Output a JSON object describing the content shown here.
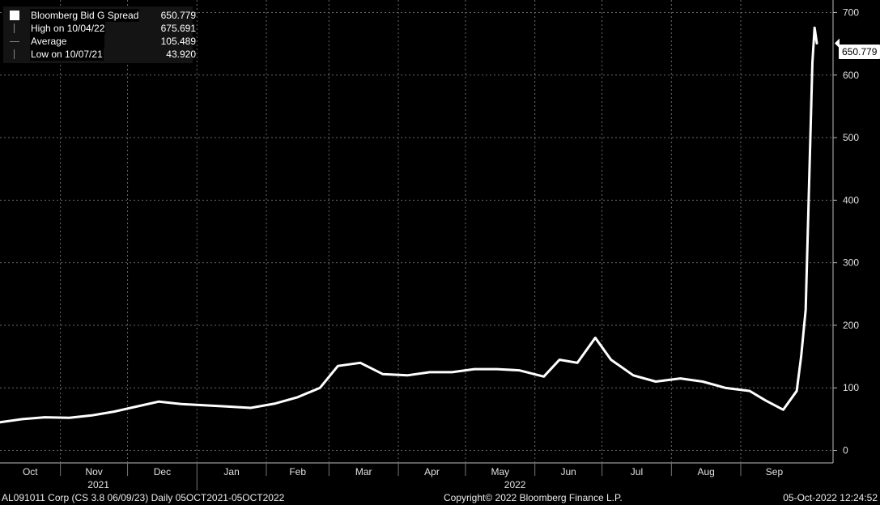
{
  "legend": {
    "series_label": "Bloomberg Bid G Spread",
    "series_value": "650.779",
    "high_label": "High on 10/04/22",
    "high_value": "675.691",
    "avg_label": "Average",
    "avg_value": "105.489",
    "low_label": "Low on 10/07/21",
    "low_value": "43.920"
  },
  "last_value_badge": "650.779",
  "footer": {
    "left": "AL091011 Corp (CS 3.8 06/09/23)  Daily 05OCT2021-05OCT2022",
    "center": "Copyright© 2022 Bloomberg Finance L.P.",
    "right": "05-Oct-2022 12:24:52"
  },
  "chart_data": {
    "type": "line",
    "title": "",
    "xlabel": "",
    "ylabel": "",
    "ylim": [
      -20,
      720
    ],
    "y_ticks": [
      0,
      100,
      200,
      300,
      400,
      500,
      600,
      700
    ],
    "x_range": [
      "2021-10-05",
      "2022-10-05"
    ],
    "month_labels": [
      "Oct",
      "Nov",
      "Dec",
      "Jan",
      "Feb",
      "Mar",
      "Apr",
      "May",
      "Jun",
      "Jul",
      "Aug",
      "Sep"
    ],
    "year_labels": [
      "2021",
      "2022"
    ],
    "grid": true,
    "legend_position": "top-left",
    "series": [
      {
        "name": "Bloomberg Bid G Spread",
        "color": "#ffffff",
        "x": [
          "2021-10-05",
          "2021-10-15",
          "2021-10-25",
          "2021-11-05",
          "2021-11-15",
          "2021-11-25",
          "2021-12-05",
          "2021-12-15",
          "2021-12-25",
          "2022-01-05",
          "2022-01-15",
          "2022-01-25",
          "2022-02-05",
          "2022-02-15",
          "2022-02-25",
          "2022-03-05",
          "2022-03-15",
          "2022-03-25",
          "2022-04-05",
          "2022-04-15",
          "2022-04-25",
          "2022-05-05",
          "2022-05-15",
          "2022-05-25",
          "2022-06-05",
          "2022-06-12",
          "2022-06-20",
          "2022-06-28",
          "2022-07-05",
          "2022-07-15",
          "2022-07-25",
          "2022-08-05",
          "2022-08-15",
          "2022-08-25",
          "2022-09-05",
          "2022-09-12",
          "2022-09-20",
          "2022-09-26",
          "2022-09-28",
          "2022-09-30",
          "2022-10-03",
          "2022-10-04",
          "2022-10-05"
        ],
        "values": [
          45,
          50,
          53,
          52,
          56,
          62,
          70,
          78,
          74,
          72,
          70,
          68,
          75,
          85,
          100,
          135,
          140,
          122,
          120,
          125,
          125,
          130,
          130,
          128,
          118,
          145,
          140,
          180,
          145,
          120,
          110,
          115,
          110,
          100,
          95,
          80,
          65,
          95,
          150,
          225,
          620,
          675.691,
          650.779
        ]
      }
    ]
  }
}
